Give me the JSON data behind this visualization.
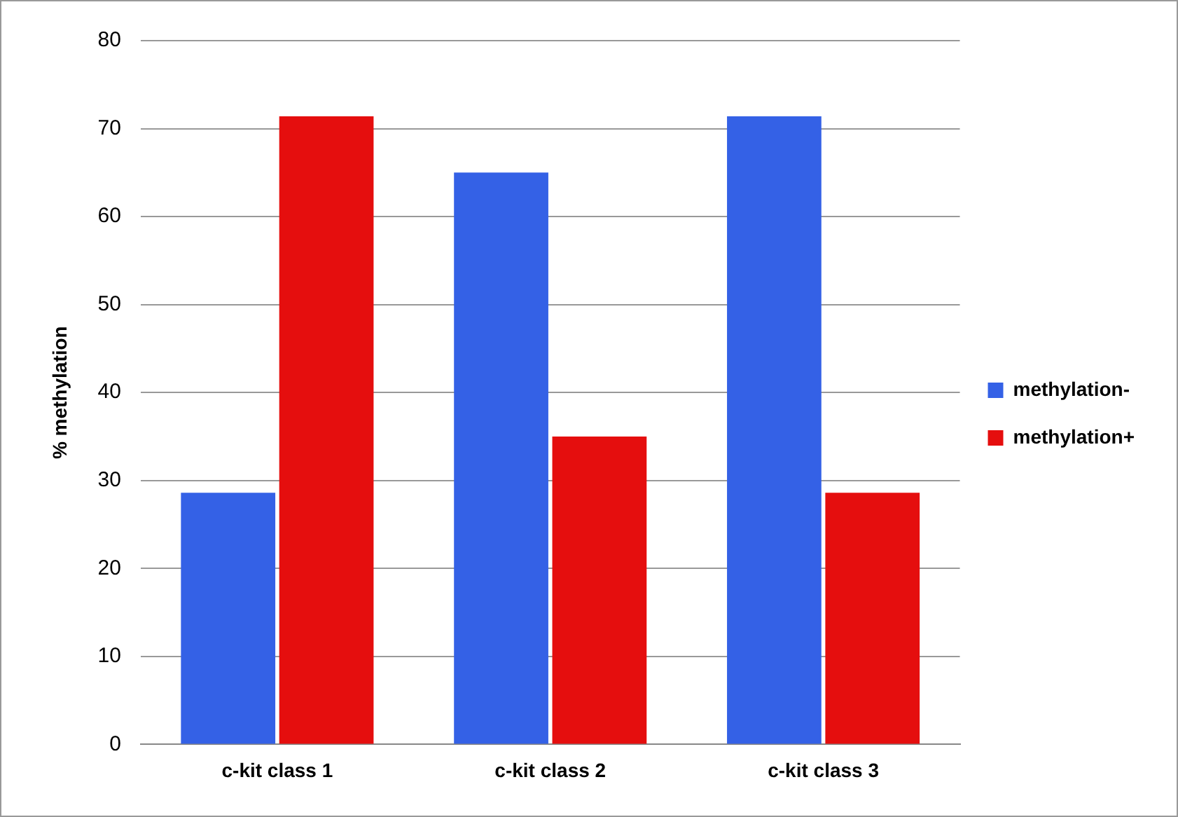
{
  "chart_data": {
    "type": "bar",
    "ylabel": "% methylation",
    "categories": [
      "c-kit class 1",
      "c-kit class 2",
      "c-kit class 3"
    ],
    "series": [
      {
        "name": "methylation-",
        "color": "#3461e6",
        "values": [
          28.6,
          65,
          71.4
        ]
      },
      {
        "name": "methylation+",
        "color": "#e50e0e",
        "values": [
          71.4,
          35,
          28.6
        ]
      }
    ],
    "ylim": [
      0,
      80
    ],
    "yticks": [
      0,
      10,
      20,
      30,
      40,
      50,
      60,
      70,
      80
    ],
    "grid": "y",
    "legend": "right"
  }
}
